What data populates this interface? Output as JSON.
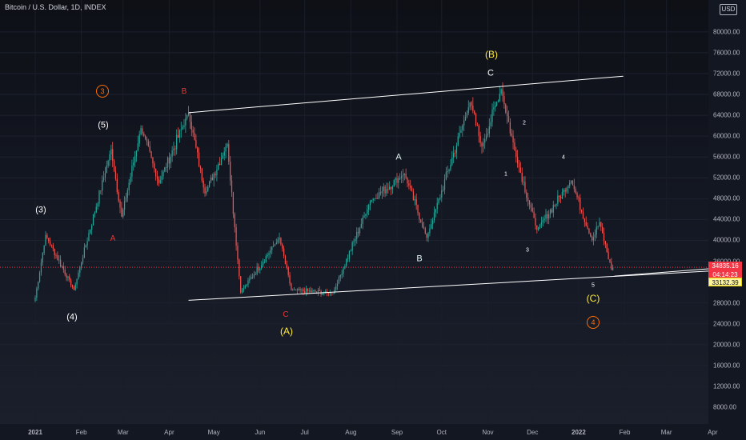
{
  "header": {
    "title": "Bitcoin / U.S. Dollar, 1D, INDEX",
    "currency": "USD"
  },
  "colors": {
    "background": "#131722",
    "up": "#26a69a",
    "down": "#ef5350",
    "last_price": "#f23645",
    "target": "#fff59d",
    "channel": "#ffffff",
    "wave_yellow": "#ffeb3b",
    "wave_orange": "#ff6d00",
    "wave_red": "#e53935"
  },
  "price_axis": {
    "labels": [
      "80000.00",
      "76000.00",
      "72000.00",
      "68000.00",
      "64000.00",
      "60000.00",
      "56000.00",
      "52000.00",
      "48000.00",
      "44000.00",
      "40000.00",
      "36000.00",
      "28000.00",
      "24000.00",
      "20000.00",
      "16000.00",
      "12000.00",
      "8000.00"
    ],
    "last_price": "34835.16",
    "countdown": "04:14:23",
    "target_price": "33132.39"
  },
  "time_axis": {
    "labels": [
      "2021",
      "Feb",
      "Mar",
      "Apr",
      "May",
      "Jun",
      "Jul",
      "Aug",
      "Sep",
      "Oct",
      "Nov",
      "Dec",
      "2022",
      "Feb",
      "Mar",
      "Apr"
    ]
  },
  "wave_labels": {
    "cycle_3": "3",
    "cycle_4": "4",
    "w3": "(3)",
    "w4": "(4)",
    "w5": "(5)",
    "red_A": "A",
    "red_B": "B",
    "red_C": "C",
    "big_A": "(A)",
    "big_B": "(B)",
    "big_C": "(C)",
    "white_A": "A",
    "white_B": "B",
    "white_C": "C",
    "s1": "1",
    "s2": "2",
    "s3": "3",
    "s4": "4",
    "s5": "5"
  },
  "chart_data": {
    "type": "candlestick",
    "symbol": "Bitcoin / U.S. Dollar",
    "interval": "1D",
    "currency": "USD",
    "ylim": [
      5000,
      85000
    ],
    "x_range": [
      "2021-01-01",
      "2022-04-10"
    ],
    "key_points": [
      {
        "date": "2021-01-01",
        "price": 29000
      },
      {
        "date": "2021-01-08",
        "price": 41000
      },
      {
        "date": "2021-01-27",
        "price": 30500
      },
      {
        "date": "2021-02-21",
        "price": 57500
      },
      {
        "date": "2021-02-28",
        "price": 44500
      },
      {
        "date": "2021-03-13",
        "price": 61500
      },
      {
        "date": "2021-03-25",
        "price": 51000
      },
      {
        "date": "2021-04-14",
        "price": 64500
      },
      {
        "date": "2021-04-25",
        "price": 49000
      },
      {
        "date": "2021-05-10",
        "price": 58500
      },
      {
        "date": "2021-05-19",
        "price": 30000
      },
      {
        "date": "2021-06-14",
        "price": 40500
      },
      {
        "date": "2021-06-22",
        "price": 30500
      },
      {
        "date": "2021-07-20",
        "price": 29800
      },
      {
        "date": "2021-08-14",
        "price": 47500
      },
      {
        "date": "2021-09-06",
        "price": 52800
      },
      {
        "date": "2021-09-21",
        "price": 40500
      },
      {
        "date": "2021-10-20",
        "price": 66500
      },
      {
        "date": "2021-10-28",
        "price": 58000
      },
      {
        "date": "2021-11-10",
        "price": 69000
      },
      {
        "date": "2021-11-20",
        "price": 56000
      },
      {
        "date": "2021-12-04",
        "price": 42000
      },
      {
        "date": "2021-12-27",
        "price": 51500
      },
      {
        "date": "2022-01-10",
        "price": 40000
      },
      {
        "date": "2022-01-15",
        "price": 43500
      },
      {
        "date": "2022-01-24",
        "price": 33300
      }
    ],
    "last_price": 34835.16,
    "target_price": 33132.39,
    "trendlines": [
      {
        "name": "upper channel",
        "from": {
          "date": "2021-04-14",
          "price": 64500
        },
        "to": {
          "date": "2022-01-31",
          "price": 71500
        }
      },
      {
        "name": "lower channel",
        "from": {
          "date": "2021-04-14",
          "price": 28500
        },
        "to": {
          "date": "2022-04-10",
          "price": 34300
        }
      },
      {
        "name": "target line",
        "from": {
          "date": "2022-01-25",
          "price": 33132
        },
        "to": {
          "date": "2022-04-10",
          "price": 34800
        }
      }
    ],
    "annotations": [
      {
        "text": "(3)",
        "date": "2021-01-08"
      },
      {
        "text": "(4)",
        "date": "2021-01-27"
      },
      {
        "text": "(5)",
        "date": "2021-02-21"
      },
      {
        "text": "3",
        "date": "2021-02-21",
        "style": "orange circle"
      },
      {
        "text": "A",
        "date": "2021-03-01",
        "style": "red"
      },
      {
        "text": "B",
        "date": "2021-04-14",
        "style": "red"
      },
      {
        "text": "C",
        "date": "2021-06-22",
        "style": "red"
      },
      {
        "text": "(A)",
        "date": "2021-06-22",
        "style": "yellow"
      },
      {
        "text": "A",
        "date": "2021-09-06"
      },
      {
        "text": "B",
        "date": "2021-09-21"
      },
      {
        "text": "C",
        "date": "2021-11-10"
      },
      {
        "text": "(B)",
        "date": "2021-11-10",
        "style": "yellow"
      },
      {
        "text": "1",
        "date": "2021-11-26"
      },
      {
        "text": "2",
        "date": "2021-11-30"
      },
      {
        "text": "3",
        "date": "2021-12-04"
      },
      {
        "text": "4",
        "date": "2021-12-27"
      },
      {
        "text": "5",
        "date": "2022-01-24"
      },
      {
        "text": "(C)",
        "date": "2022-01-24",
        "style": "yellow"
      },
      {
        "text": "4",
        "date": "2022-01-24",
        "style": "orange circle"
      }
    ]
  }
}
